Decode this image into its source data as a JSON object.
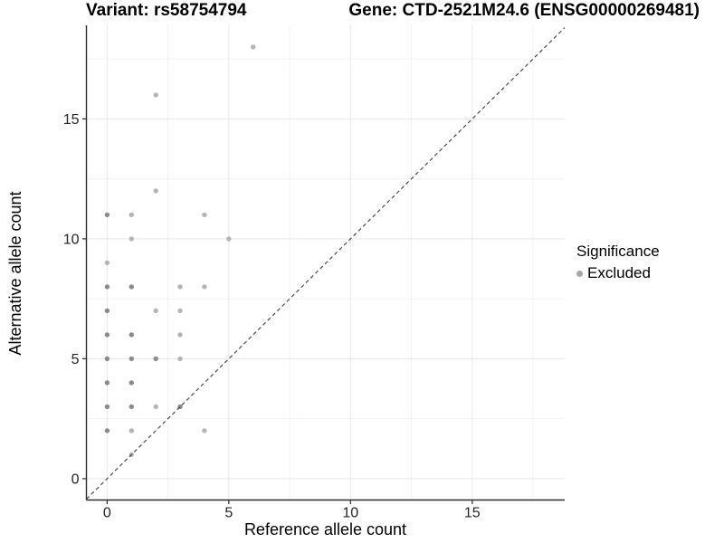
{
  "titles": {
    "left": "Variant: rs58754794",
    "right": "Gene: CTD-2521M24.6 (ENSG00000269481)"
  },
  "chart_data": {
    "type": "scatter",
    "xlabel": "Reference allele count",
    "ylabel": "Alternative allele count",
    "xlim": [
      -0.85,
      18.8
    ],
    "ylim": [
      -0.89,
      18.9
    ],
    "x_ticks": [
      0,
      5,
      10,
      15
    ],
    "y_ticks": [
      0,
      5,
      10,
      15
    ],
    "x_minor_ticks": [
      2.5,
      7.5,
      12.5,
      17.5
    ],
    "y_minor_ticks": [
      2.5,
      7.5,
      12.5,
      17.5
    ],
    "grid": "major+minor",
    "identity_line": {
      "style": "dashed",
      "slope": 1,
      "intercept": 0,
      "color": "#3b3b3b"
    },
    "points_note": "each point is [reference_allele_count, alternative_allele_count, shade] shade 2=dark overplotted, 1=light",
    "points": [
      [
        0,
        2,
        2
      ],
      [
        0,
        3,
        2
      ],
      [
        0,
        4,
        2
      ],
      [
        0,
        5,
        2
      ],
      [
        0,
        6,
        2
      ],
      [
        0,
        7,
        2
      ],
      [
        0,
        8,
        2
      ],
      [
        0,
        9,
        1
      ],
      [
        0,
        11,
        2
      ],
      [
        1,
        1,
        1
      ],
      [
        1,
        2,
        1
      ],
      [
        1,
        3,
        2
      ],
      [
        1,
        4,
        2
      ],
      [
        1,
        5,
        2
      ],
      [
        1,
        6,
        2
      ],
      [
        1,
        8,
        2
      ],
      [
        1,
        10,
        1
      ],
      [
        1,
        11,
        1
      ],
      [
        2,
        3,
        1
      ],
      [
        2,
        5,
        2
      ],
      [
        2,
        7,
        1
      ],
      [
        2,
        12,
        1
      ],
      [
        2,
        16,
        1
      ],
      [
        3,
        3,
        2
      ],
      [
        3,
        5,
        1
      ],
      [
        3,
        6,
        1
      ],
      [
        3,
        7,
        1
      ],
      [
        3,
        8,
        1
      ],
      [
        4,
        2,
        1
      ],
      [
        4,
        8,
        1
      ],
      [
        4,
        11,
        1
      ],
      [
        5,
        10,
        1
      ],
      [
        6,
        18,
        1
      ]
    ],
    "style": {
      "point_color_light": "#b5b5b5",
      "point_color_dark": "#8b8b8b",
      "axis_color": "#2d2d2d",
      "tick_label_color": "#262626",
      "grid_major_color": "#e7e7e7",
      "grid_minor_color": "#f1f1f1"
    },
    "legend": {
      "title": "Significance",
      "position": "right",
      "entries": [
        {
          "label": "Excluded",
          "color": "#a8a8a8"
        }
      ]
    }
  }
}
